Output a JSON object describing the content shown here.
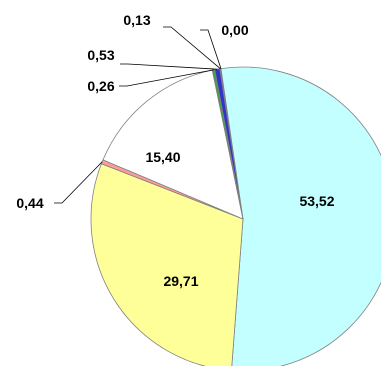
{
  "chart_data": {
    "type": "pie",
    "title": "",
    "labels": [
      "0,13",
      "0,00",
      "53,52",
      "29,71",
      "0,44",
      "15,40",
      "0,26",
      "0,53"
    ],
    "values": [
      0.13,
      0.0,
      53.52,
      29.71,
      0.44,
      15.4,
      0.26,
      0.53
    ],
    "colors": [
      "#6a6aff",
      "#6a6aff",
      "#c4ffff",
      "#ffff99",
      "#ff9a9a",
      "#ffffff",
      "#33aa33",
      "#3333cc"
    ],
    "border_color": "#808080",
    "legend": "none"
  }
}
